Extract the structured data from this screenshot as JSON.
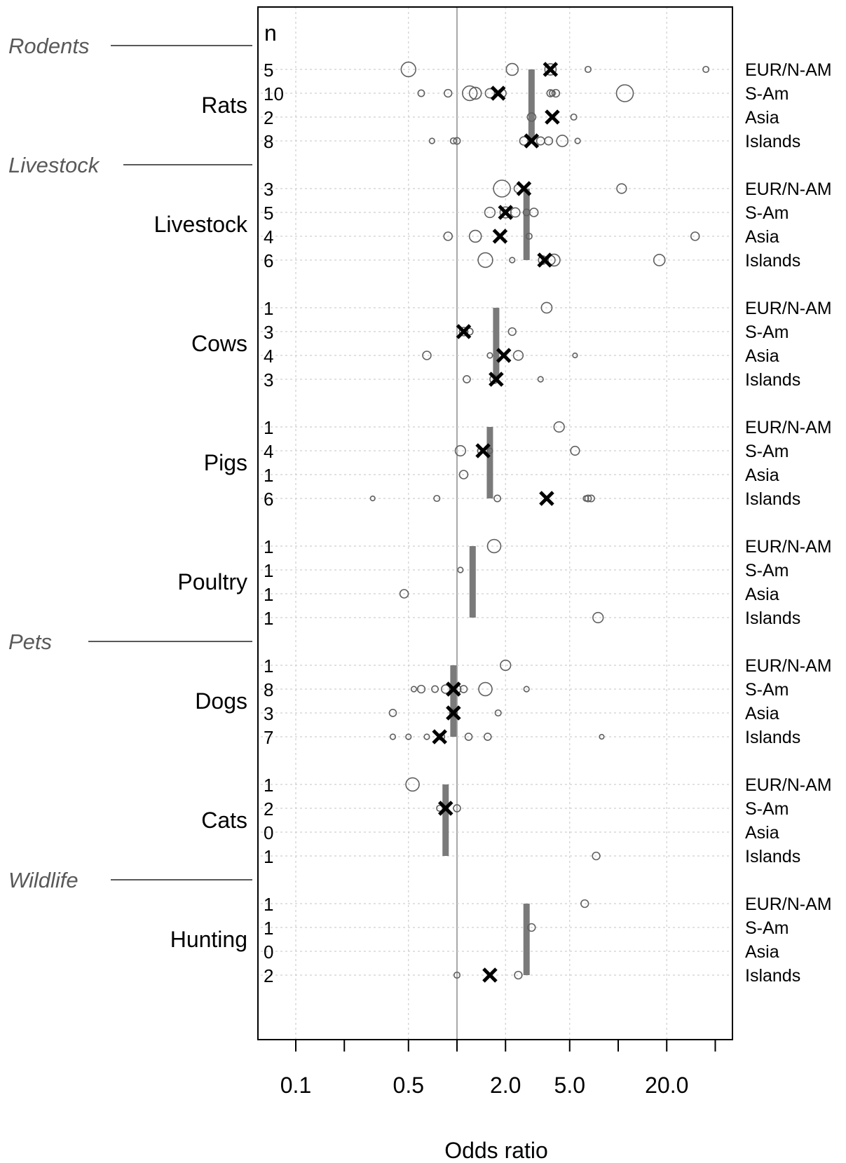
{
  "chart_data": {
    "type": "scatter",
    "xlabel": "Odds ratio",
    "x_scale": "log",
    "xlim": [
      0.06,
      45
    ],
    "x_ticks": [
      0.1,
      0.2,
      0.5,
      1.0,
      2.0,
      5.0,
      10.0,
      20.0,
      40.0
    ],
    "x_tick_labels": [
      "0.1",
      "",
      "0.5",
      "",
      "2.0",
      "5.0",
      "",
      "20.0",
      ""
    ],
    "reference_line": 1.0,
    "n_header": "n",
    "regions": [
      "EUR/N-AM",
      "S-Am",
      "Asia",
      "Islands"
    ],
    "grid": true,
    "categories": [
      {
        "label": "Rodents",
        "before": "Rats"
      },
      {
        "label": "Livestock",
        "before": "Livestock"
      },
      {
        "label": "Pets",
        "before": "Dogs"
      },
      {
        "label": "Wildlife",
        "before": "Hunting"
      }
    ],
    "groups": [
      {
        "name": "Rats",
        "overall": 2.9,
        "rows": [
          {
            "region": "EUR/N-AM",
            "n": "5",
            "pooled": 3.8,
            "studies": [
              [
                0.5,
                3.0
              ],
              [
                2.2,
                2.0
              ],
              [
                3.8,
                1.8
              ],
              [
                6.5,
                0.5
              ],
              [
                35.0,
                0.5
              ]
            ]
          },
          {
            "region": "S-Am",
            "n": "10",
            "pooled": 1.8,
            "studies": [
              [
                0.6,
                0.6
              ],
              [
                0.88,
                0.8
              ],
              [
                1.2,
                3.0
              ],
              [
                1.3,
                2.0
              ],
              [
                1.6,
                1.2
              ],
              [
                1.9,
                1.0
              ],
              [
                3.8,
                0.7
              ],
              [
                4.1,
                0.8
              ],
              [
                3.9,
                0.5
              ],
              [
                11.0,
                4.0
              ]
            ]
          },
          {
            "region": "Asia",
            "n": "2",
            "pooled": 3.9,
            "studies": [
              [
                2.9,
                1.0
              ],
              [
                5.3,
                0.5
              ]
            ]
          },
          {
            "region": "Islands",
            "n": "8",
            "pooled": 2.9,
            "studies": [
              [
                0.7,
                0.4
              ],
              [
                0.95,
                0.5
              ],
              [
                1.0,
                0.6
              ],
              [
                2.6,
                1.0
              ],
              [
                3.3,
                0.9
              ],
              [
                3.7,
                0.9
              ],
              [
                4.5,
                1.8
              ],
              [
                5.6,
                0.4
              ]
            ]
          }
        ]
      },
      {
        "name": "Livestock",
        "overall": 2.7,
        "rows": [
          {
            "region": "EUR/N-AM",
            "n": "3",
            "pooled": 2.6,
            "studies": [
              [
                1.9,
                4.0
              ],
              [
                2.4,
                1.0
              ],
              [
                10.5,
                1.3
              ]
            ]
          },
          {
            "region": "S-Am",
            "n": "5",
            "pooled": 2.0,
            "studies": [
              [
                1.6,
                1.5
              ],
              [
                2.0,
                1.7
              ],
              [
                2.3,
                1.2
              ],
              [
                2.7,
                0.6
              ],
              [
                3.0,
                1.0
              ]
            ]
          },
          {
            "region": "Asia",
            "n": "4",
            "pooled": 1.85,
            "studies": [
              [
                0.88,
                1.0
              ],
              [
                1.3,
                2.0
              ],
              [
                2.8,
                0.5
              ],
              [
                30.0,
                1.0
              ]
            ]
          },
          {
            "region": "Islands",
            "n": "6",
            "pooled": 3.5,
            "studies": [
              [
                1.5,
                3.0
              ],
              [
                2.2,
                0.4
              ],
              [
                3.4,
                1.0
              ],
              [
                3.8,
                1.2
              ],
              [
                4.0,
                2.0
              ],
              [
                18.0,
                1.8
              ]
            ]
          }
        ]
      },
      {
        "name": "Cows",
        "overall": 1.75,
        "rows": [
          {
            "region": "EUR/N-AM",
            "n": "1",
            "pooled": null,
            "studies": [
              [
                3.6,
                1.6
              ]
            ]
          },
          {
            "region": "S-Am",
            "n": "3",
            "pooled": 1.1,
            "studies": [
              [
                1.1,
                1.0
              ],
              [
                1.2,
                0.6
              ],
              [
                2.2,
                0.8
              ]
            ]
          },
          {
            "region": "Asia",
            "n": "4",
            "pooled": 1.95,
            "studies": [
              [
                0.65,
                1.0
              ],
              [
                1.6,
                0.4
              ],
              [
                2.4,
                1.3
              ],
              [
                5.4,
                0.3
              ]
            ]
          },
          {
            "region": "Islands",
            "n": "3",
            "pooled": 1.75,
            "studies": [
              [
                1.15,
                0.7
              ],
              [
                1.7,
                1.0
              ],
              [
                3.3,
                0.4
              ]
            ]
          }
        ]
      },
      {
        "name": "Pigs",
        "overall": 1.6,
        "rows": [
          {
            "region": "EUR/N-AM",
            "n": "1",
            "pooled": null,
            "studies": [
              [
                4.3,
                1.5
              ]
            ]
          },
          {
            "region": "S-Am",
            "n": "4",
            "pooled": 1.45,
            "studies": [
              [
                1.05,
                1.5
              ],
              [
                1.4,
                0.5
              ],
              [
                1.6,
                0.4
              ],
              [
                5.4,
                1.1
              ]
            ]
          },
          {
            "region": "Asia",
            "n": "1",
            "pooled": null,
            "studies": [
              [
                1.1,
                1.0
              ]
            ]
          },
          {
            "region": "Islands",
            "n": "6",
            "pooled": 3.6,
            "studies": [
              [
                0.3,
                0.3
              ],
              [
                0.75,
                0.5
              ],
              [
                1.78,
                0.6
              ],
              [
                6.5,
                0.6
              ],
              [
                6.8,
                0.6
              ],
              [
                6.3,
                0.4
              ]
            ]
          }
        ]
      },
      {
        "name": "Poultry",
        "overall": 1.25,
        "rows": [
          {
            "region": "EUR/N-AM",
            "n": "1",
            "pooled": null,
            "studies": [
              [
                1.7,
                2.5
              ]
            ]
          },
          {
            "region": "S-Am",
            "n": "1",
            "pooled": null,
            "studies": [
              [
                1.05,
                0.4
              ]
            ]
          },
          {
            "region": "Asia",
            "n": "1",
            "pooled": null,
            "studies": [
              [
                0.47,
                1.0
              ]
            ]
          },
          {
            "region": "Islands",
            "n": "1",
            "pooled": null,
            "studies": [
              [
                7.5,
                1.5
              ]
            ]
          }
        ]
      },
      {
        "name": "Dogs",
        "overall": 0.95,
        "rows": [
          {
            "region": "EUR/N-AM",
            "n": "1",
            "pooled": null,
            "studies": [
              [
                2.0,
                1.5
              ]
            ]
          },
          {
            "region": "S-Am",
            "n": "8",
            "pooled": 0.95,
            "studies": [
              [
                0.54,
                0.4
              ],
              [
                0.6,
                0.8
              ],
              [
                0.73,
                0.6
              ],
              [
                0.85,
                1.0
              ],
              [
                1.0,
                0.9
              ],
              [
                1.1,
                0.7
              ],
              [
                1.5,
                2.5
              ],
              [
                2.7,
                0.4
              ]
            ]
          },
          {
            "region": "Asia",
            "n": "3",
            "pooled": 0.95,
            "studies": [
              [
                0.4,
                0.7
              ],
              [
                0.95,
                0.8
              ],
              [
                1.8,
                0.5
              ]
            ]
          },
          {
            "region": "Islands",
            "n": "7",
            "pooled": 0.78,
            "studies": [
              [
                0.4,
                0.4
              ],
              [
                0.5,
                0.4
              ],
              [
                0.65,
                0.4
              ],
              [
                0.8,
                0.6
              ],
              [
                1.18,
                0.7
              ],
              [
                1.55,
                0.7
              ],
              [
                7.9,
                0.3
              ]
            ]
          }
        ]
      },
      {
        "name": "Cats",
        "overall": 0.85,
        "rows": [
          {
            "region": "EUR/N-AM",
            "n": "1",
            "pooled": null,
            "studies": [
              [
                0.53,
                2.5
              ]
            ]
          },
          {
            "region": "S-Am",
            "n": "2",
            "pooled": 0.85,
            "studies": [
              [
                0.78,
                0.5
              ],
              [
                1.0,
                0.7
              ]
            ]
          },
          {
            "region": "Asia",
            "n": "0",
            "pooled": null,
            "studies": []
          },
          {
            "region": "Islands",
            "n": "1",
            "pooled": null,
            "studies": [
              [
                7.3,
                0.8
              ]
            ]
          }
        ]
      },
      {
        "name": "Hunting",
        "overall": 2.7,
        "rows": [
          {
            "region": "EUR/N-AM",
            "n": "1",
            "pooled": null,
            "studies": [
              [
                6.2,
                0.8
              ]
            ]
          },
          {
            "region": "S-Am",
            "n": "1",
            "pooled": null,
            "studies": [
              [
                2.9,
                0.8
              ]
            ]
          },
          {
            "region": "Asia",
            "n": "0",
            "pooled": null,
            "studies": []
          },
          {
            "region": "Islands",
            "n": "2",
            "pooled": 1.6,
            "studies": [
              [
                1.0,
                0.5
              ],
              [
                2.4,
                0.8
              ]
            ]
          }
        ]
      }
    ]
  }
}
